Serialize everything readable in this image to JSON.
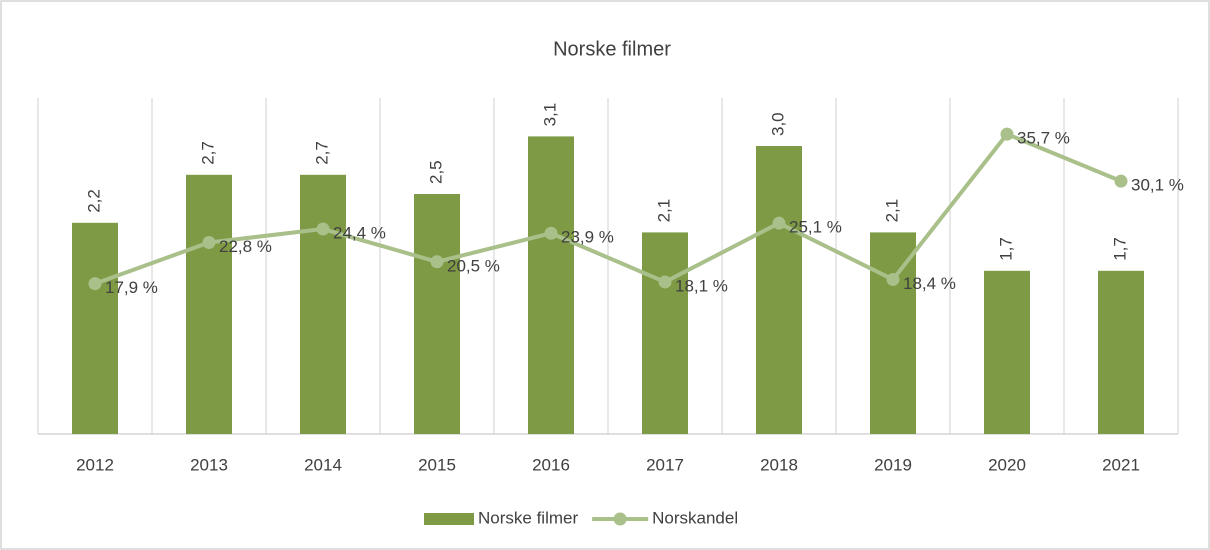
{
  "chart_data": {
    "type": "combo",
    "title": "Norske filmer",
    "categories": [
      "2012",
      "2013",
      "2014",
      "2015",
      "2016",
      "2017",
      "2018",
      "2019",
      "2020",
      "2021"
    ],
    "ylim": [
      0,
      3.5
    ],
    "y2lim": [
      0,
      40
    ],
    "legend": "bottom",
    "series": [
      {
        "name": "Norske filmer",
        "type": "bar",
        "color": "#7f9a44",
        "values": [
          2.2,
          2.7,
          2.7,
          2.5,
          3.1,
          2.1,
          3.0,
          2.1,
          1.7,
          1.7
        ],
        "value_labels": [
          "2,2",
          "2,7",
          "2,7",
          "2,5",
          "3,1",
          "2,1",
          "3,0",
          "2,1",
          "1,7",
          "1,7"
        ]
      },
      {
        "name": "Norskandel",
        "type": "line",
        "axis": "y2",
        "color": "#a9c08a",
        "values": [
          17.9,
          22.8,
          24.4,
          20.5,
          23.9,
          18.1,
          25.1,
          18.4,
          35.7,
          30.1
        ],
        "value_labels": [
          "17,9 %",
          "22,8 %",
          "24,4 %",
          "20,5 %",
          "23,9 %",
          "18,1 %",
          "25,1 %",
          "18,4 %",
          "35,7 %",
          "30,1 %"
        ]
      }
    ]
  }
}
